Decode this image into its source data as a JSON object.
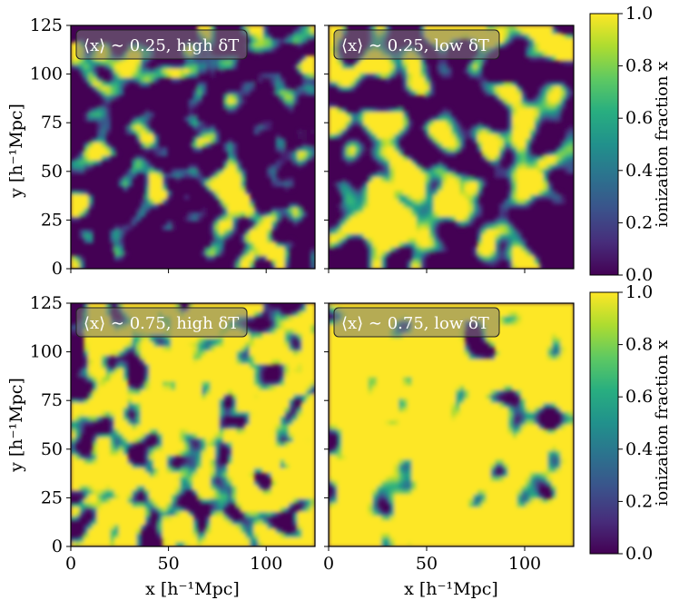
{
  "chart_data": {
    "type": "heatmap",
    "xlim": [
      0,
      125
    ],
    "ylim": [
      0,
      125
    ],
    "x_ticks": [
      "0",
      "50",
      "100"
    ],
    "y_ticks": [
      "0",
      "25",
      "50",
      "75",
      "100",
      "125"
    ],
    "xlabel": "x [h⁻¹Mpc]",
    "ylabel": "y [h⁻¹Mpc]",
    "colormap": "viridis",
    "colorbar_label": "ionization fraction x",
    "colorbar_range": [
      0.0,
      1.0
    ],
    "colorbar_ticks": [
      "0.0",
      "0.2",
      "0.4",
      "0.6",
      "0.8",
      "1.0"
    ],
    "panels": [
      {
        "label": "⟨x⟩ ∼ 0.25, high δT",
        "mean_ionization": 0.25
      },
      {
        "label": "⟨x⟩ ∼ 0.25, low δT",
        "mean_ionization": 0.25
      },
      {
        "label": "⟨x⟩ ∼ 0.75, high δT",
        "mean_ionization": 0.75
      },
      {
        "label": "⟨x⟩ ∼ 0.75, low δT",
        "mean_ionization": 0.75
      }
    ],
    "colors": {
      "low": "#440154",
      "mid": "#21918c",
      "high": "#fde725"
    }
  }
}
